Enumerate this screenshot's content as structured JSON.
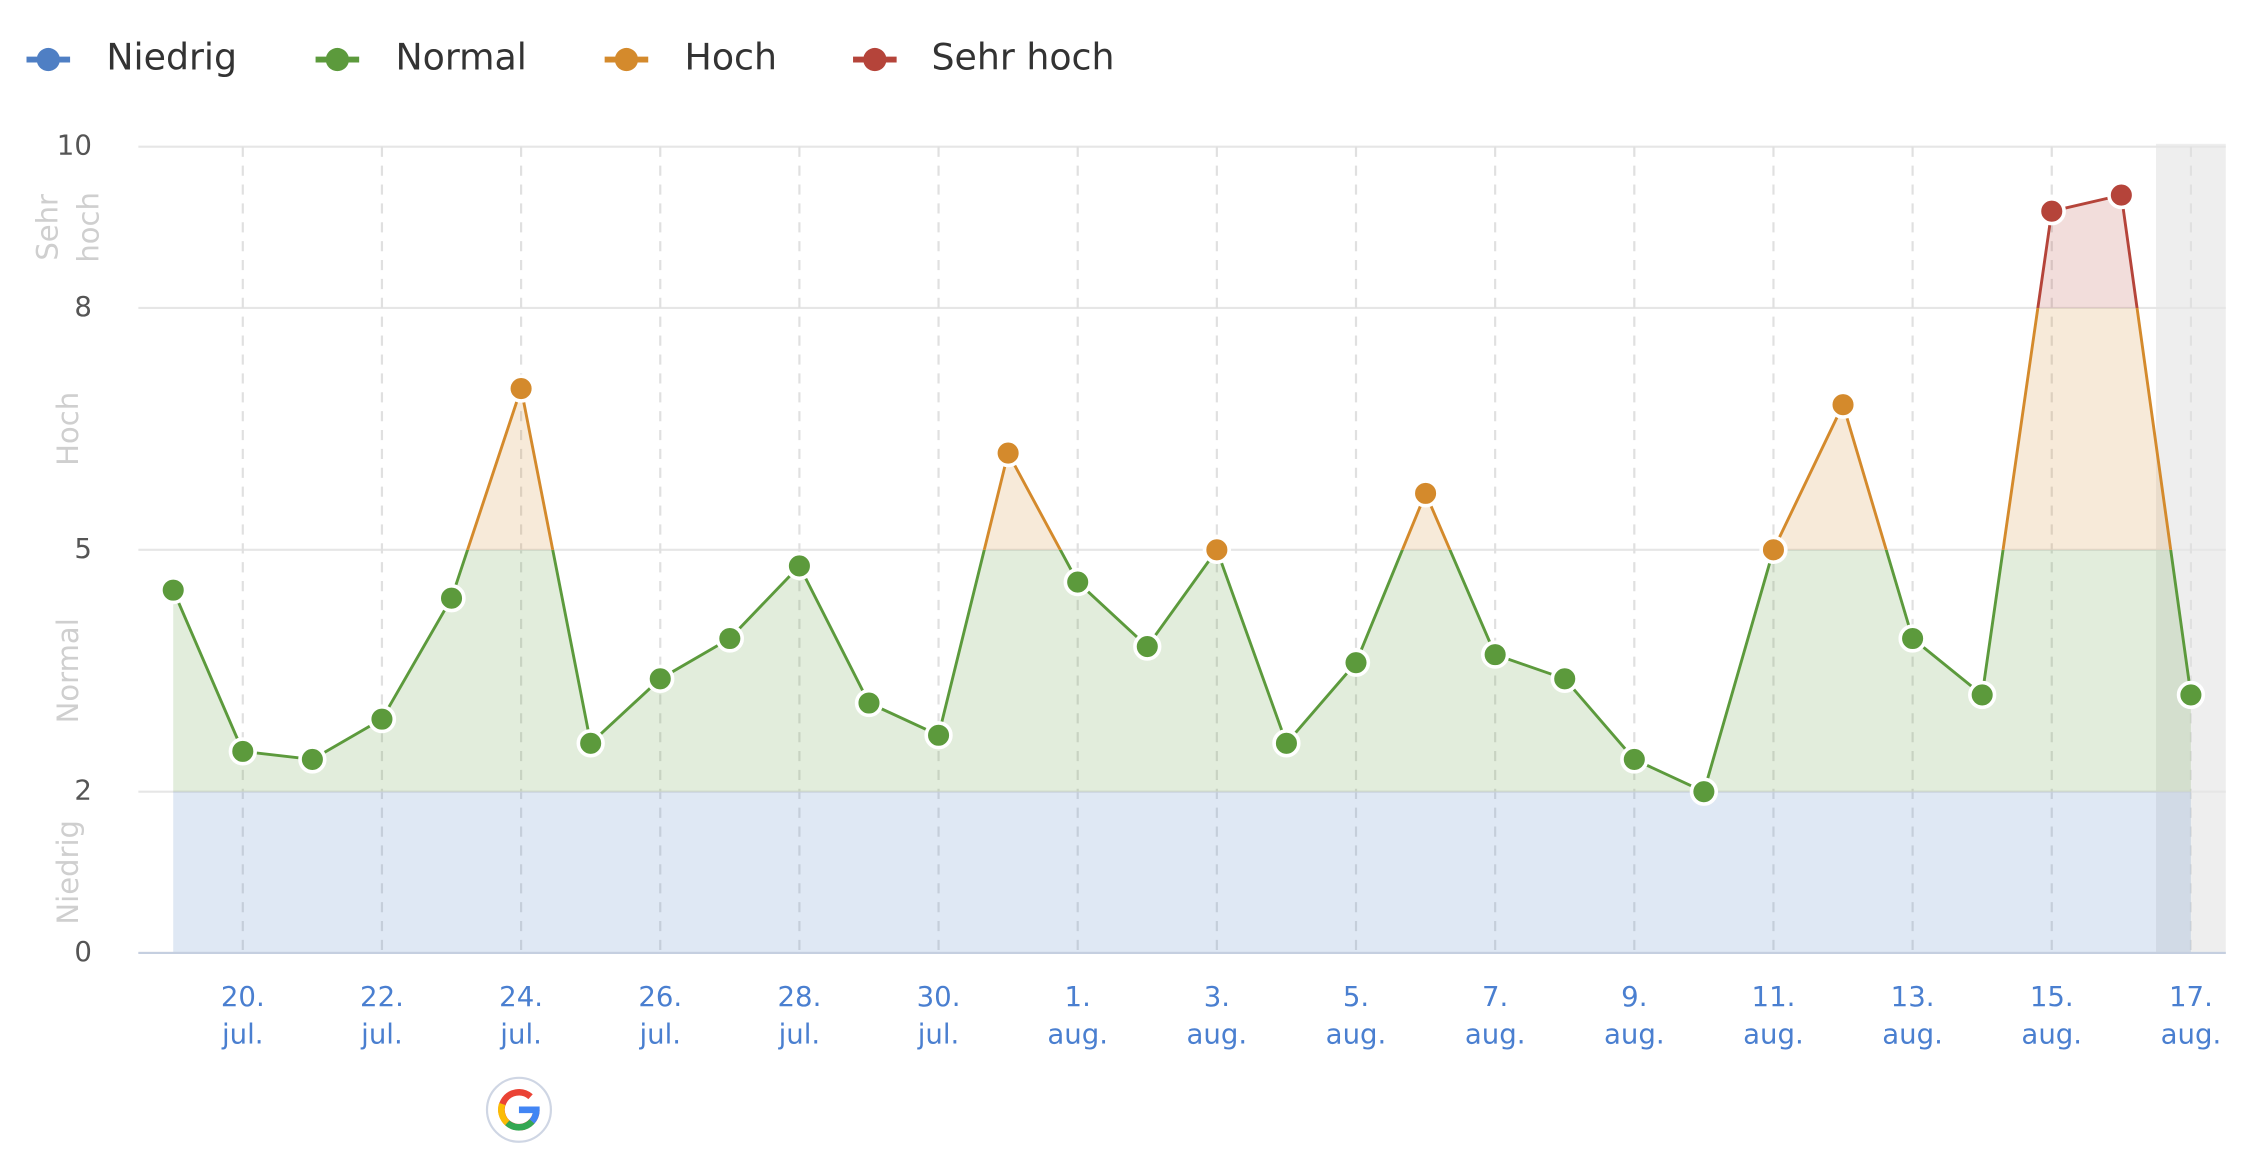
{
  "chart_data": {
    "type": "line",
    "categories": [
      null,
      "20. jul.",
      null,
      "22. jul.",
      null,
      "24. jul.",
      null,
      "26. jul.",
      null,
      "28. jul.",
      null,
      "30. jul.",
      null,
      "1. aug.",
      null,
      "3. aug.",
      null,
      "5. aug.",
      null,
      "7. aug.",
      null,
      "9. aug.",
      null,
      "11. aug.",
      null,
      "13. aug.",
      null,
      "15. aug.",
      null,
      "17. aug."
    ],
    "values": [
      4.5,
      2.5,
      2.4,
      2.9,
      4.4,
      7.0,
      2.6,
      3.4,
      3.9,
      4.8,
      3.1,
      2.7,
      6.2,
      4.6,
      3.8,
      5.0,
      2.6,
      3.6,
      5.7,
      3.7,
      3.4,
      2.4,
      2.0,
      5.0,
      6.8,
      3.9,
      3.2,
      9.2,
      9.4,
      3.2
    ],
    "ylim": [
      0,
      10
    ],
    "yticks": [
      0,
      2,
      5,
      8,
      10
    ],
    "grid": true,
    "legend": "top-left",
    "bands": [
      {
        "name": "Niedrig",
        "color": "#4f7fc4",
        "range": [
          0,
          2
        ]
      },
      {
        "name": "Normal",
        "color": "#5c9a3c",
        "range": [
          2,
          5
        ]
      },
      {
        "name": "Hoch",
        "color": "#d48a2c",
        "range": [
          5,
          8
        ]
      },
      {
        "name": "Sehr hoch",
        "color": "#b5443a",
        "range": [
          8,
          10
        ]
      }
    ]
  }
}
